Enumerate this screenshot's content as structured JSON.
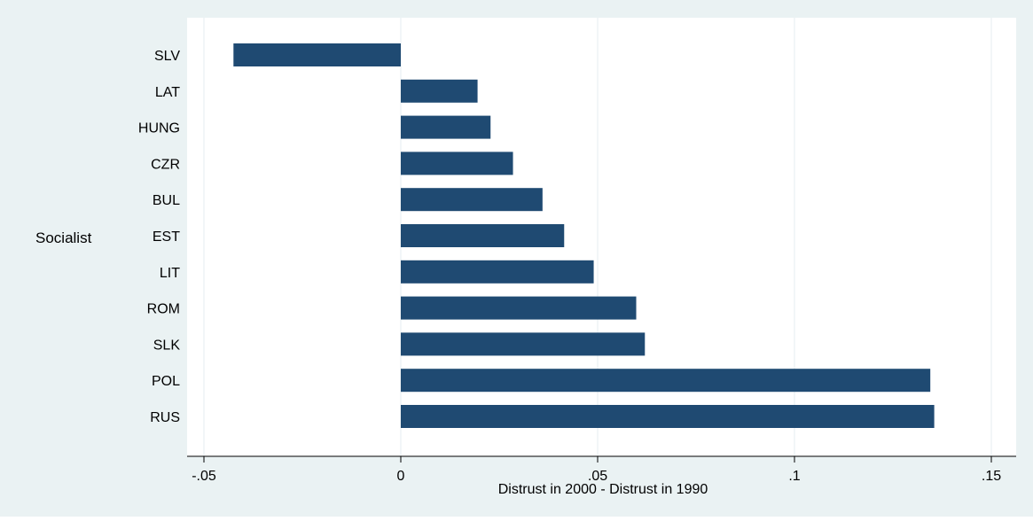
{
  "chart_data": {
    "type": "bar",
    "orientation": "horizontal",
    "group_label": "Socialist",
    "categories": [
      "SLV",
      "LAT",
      "HUNG",
      "CZR",
      "BUL",
      "EST",
      "LIT",
      "ROM",
      "SLK",
      "POL",
      "RUS"
    ],
    "values": [
      -0.0425,
      0.0195,
      0.0228,
      0.0285,
      0.036,
      0.0415,
      0.049,
      0.0598,
      0.062,
      0.1345,
      0.1355
    ],
    "xlabel": "Distrust in 2000 - Distrust in 1990",
    "xlim": [
      -0.055,
      0.157
    ],
    "xticks": [
      -0.05,
      0,
      0.05,
      0.1,
      0.15
    ],
    "xtick_labels": [
      "-.05",
      "0",
      ".05",
      ".1",
      ".15"
    ],
    "grid": "vertical",
    "colors": {
      "bar": "#1f4a72",
      "outer_background": "#eaf2f3",
      "plot_background": "#ffffff",
      "grid": "#e4eef0"
    }
  }
}
